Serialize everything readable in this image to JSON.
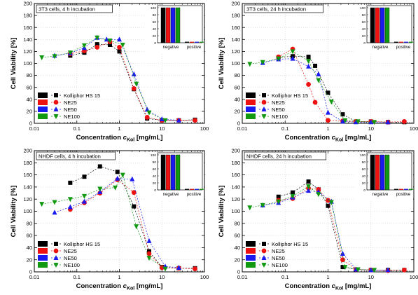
{
  "legend_entries": [
    "Kolliphor HS 15",
    "NE25",
    "NE50",
    "NE100"
  ],
  "colors": {
    "Kolliphor HS 15": "#000000",
    "NE25": "#ee1111",
    "NE50": "#1a1aee",
    "NE100": "#119911"
  },
  "inset": {
    "categories": [
      "negative",
      "positive"
    ],
    "yticks": [
      "0",
      "20",
      "40",
      "60",
      "80",
      "100"
    ]
  },
  "chart_data": [
    {
      "type": "scatter",
      "title": "3T3 cells, 4 h incubation",
      "xlabel_main": "Concentration ",
      "xlabel_italic": "c",
      "xlabel_sub": "Kol",
      "xlabel_unit": " [mg/mL]",
      "ylabel": "Cell Viability [%]",
      "xscale": "log",
      "xlim": [
        0.01,
        100
      ],
      "ylim": [
        0,
        200
      ],
      "xticks": [
        "0.01",
        "0.1",
        "1",
        "10",
        "100"
      ],
      "yticks": [
        "0",
        "20",
        "40",
        "60",
        "80",
        "100",
        "120",
        "140",
        "160",
        "180",
        "200"
      ],
      "series": [
        {
          "name": "Kolliphor HS 15",
          "x": [
            0.07,
            0.15,
            0.3,
            0.6,
            1.0,
            2.2,
            4.5,
            10,
            25,
            60
          ],
          "y": [
            113,
            118,
            132,
            131,
            120,
            57,
            8,
            5,
            5,
            6
          ]
        },
        {
          "name": "NE25",
          "x": [
            0.07,
            0.15,
            0.3,
            0.6,
            1.0,
            2.2,
            4.5,
            10,
            25,
            60
          ],
          "y": [
            116,
            121,
            127,
            136,
            127,
            58,
            10,
            5,
            5,
            5
          ]
        },
        {
          "name": "NE50",
          "x": [
            0.03,
            0.07,
            0.15,
            0.3,
            0.5,
            1.0,
            2.2,
            4.5,
            10,
            25
          ],
          "y": [
            113,
            117,
            126,
            143,
            140,
            140,
            82,
            23,
            7,
            5
          ]
        },
        {
          "name": "NE100",
          "x": [
            0.015,
            0.03,
            0.07,
            0.15,
            0.3,
            0.6,
            1.2,
            2.5,
            5,
            12
          ],
          "y": [
            110,
            112,
            118,
            130,
            143,
            138,
            131,
            66,
            18,
            5
          ]
        }
      ]
    },
    {
      "type": "scatter",
      "title": "3T3 cells, 24 h incubation",
      "xlabel_main": "Concentration ",
      "xlabel_italic": "c",
      "xlabel_sub": "Kol",
      "xlabel_unit": " [mg/mL]",
      "ylabel": "Cell Viability [%]",
      "xscale": "log",
      "xlim": [
        0.01,
        100
      ],
      "ylim": [
        0,
        200
      ],
      "xticks": [
        "0.01",
        "0.1",
        "1",
        "10",
        "100"
      ],
      "yticks": [
        "0",
        "20",
        "40",
        "60",
        "80",
        "100",
        "120",
        "140",
        "160",
        "180",
        "200"
      ],
      "series": [
        {
          "name": "Kolliphor HS 15",
          "x": [
            0.07,
            0.15,
            0.35,
            0.5,
            1.0,
            2.2,
            4.5,
            10,
            25,
            60
          ],
          "y": [
            110,
            112,
            111,
            96,
            51,
            15,
            3,
            3,
            2,
            2
          ]
        },
        {
          "name": "NE25",
          "x": [
            0.07,
            0.15,
            0.35,
            0.5,
            1.0,
            2.2,
            4.5,
            10,
            25,
            60
          ],
          "y": [
            111,
            124,
            65,
            35,
            5,
            4,
            3,
            3,
            2,
            3
          ]
        },
        {
          "name": "NE50",
          "x": [
            0.03,
            0.07,
            0.15,
            0.35,
            0.6,
            1.0,
            2.2,
            4.5,
            10,
            25
          ],
          "y": [
            101,
            107,
            108,
            95,
            82,
            18,
            3,
            2,
            2,
            2
          ]
        },
        {
          "name": "NE100",
          "x": [
            0.015,
            0.03,
            0.07,
            0.15,
            0.35,
            0.6,
            1.2,
            2.5,
            5,
            12
          ],
          "y": [
            99,
            102,
            108,
            120,
            104,
            72,
            36,
            5,
            3,
            2
          ]
        }
      ]
    },
    {
      "type": "scatter",
      "title": "NHDF cells, 4 h incubation",
      "xlabel_main": "Concentration ",
      "xlabel_italic": "c",
      "xlabel_sub": "Kol",
      "xlabel_unit": " [mg/mL]",
      "ylabel": "Cell Viability [%]",
      "xscale": "log",
      "xlim": [
        0.01,
        100
      ],
      "ylim": [
        0,
        200
      ],
      "xticks": [
        "0.01",
        "0.1",
        "1",
        "10",
        "100"
      ],
      "yticks": [
        "0",
        "20",
        "40",
        "60",
        "80",
        "100",
        "120",
        "140",
        "160",
        "180",
        "200"
      ],
      "series": [
        {
          "name": "Kolliphor HS 15",
          "x": [
            0.07,
            0.15,
            0.35,
            0.9,
            2.2,
            5,
            10,
            25,
            60
          ],
          "y": [
            147,
            157,
            174,
            165,
            108,
            34,
            8,
            6,
            6
          ]
        },
        {
          "name": "NE25",
          "x": [
            0.07,
            0.15,
            0.35,
            0.9,
            2.2,
            5,
            10,
            25,
            60
          ],
          "y": [
            103,
            114,
            130,
            152,
            131,
            30,
            7,
            6,
            5
          ]
        },
        {
          "name": "NE50",
          "x": [
            0.03,
            0.07,
            0.15,
            0.35,
            0.9,
            2.0,
            5,
            12,
            25
          ],
          "y": [
            98,
            107,
            116,
            132,
            154,
            153,
            51,
            9,
            7
          ]
        },
        {
          "name": "NE100",
          "x": [
            0.015,
            0.03,
            0.07,
            0.15,
            0.35,
            0.8,
            1.2,
            2.5,
            5,
            12
          ],
          "y": [
            112,
            115,
            120,
            125,
            137,
            139,
            160,
            75,
            23,
            5
          ]
        }
      ]
    },
    {
      "type": "scatter",
      "title": "NHDF cells, 24 h incubation",
      "xlabel_main": "Concentration ",
      "xlabel_italic": "c",
      "xlabel_sub": "Kol",
      "xlabel_unit": " [mg/mL]",
      "ylabel": "Cell Viability [%]",
      "xscale": "log",
      "xlim": [
        0.01,
        100
      ],
      "ylim": [
        0,
        200
      ],
      "xticks": [
        "0.01",
        "0.1",
        "1",
        "10",
        "100"
      ],
      "yticks": [
        "0",
        "20",
        "40",
        "60",
        "80",
        "100",
        "120",
        "140",
        "160",
        "180",
        "200"
      ],
      "series": [
        {
          "name": "Kolliphor HS 15",
          "x": [
            0.07,
            0.15,
            0.35,
            0.6,
            1.0,
            2.2,
            4.5,
            10,
            25,
            60
          ],
          "y": [
            124,
            131,
            149,
            136,
            109,
            8,
            4,
            3,
            3,
            3
          ]
        },
        {
          "name": "NE25",
          "x": [
            0.07,
            0.15,
            0.35,
            0.6,
            1.0,
            2.2,
            4.5,
            10,
            25,
            60
          ],
          "y": [
            118,
            121,
            138,
            136,
            118,
            20,
            4,
            3,
            2,
            3
          ]
        },
        {
          "name": "NE50",
          "x": [
            0.03,
            0.07,
            0.15,
            0.35,
            0.6,
            1.2,
            2.2,
            4.5,
            10,
            25
          ],
          "y": [
            110,
            114,
            123,
            134,
            132,
            116,
            30,
            4,
            3,
            3
          ]
        },
        {
          "name": "NE100",
          "x": [
            0.015,
            0.03,
            0.07,
            0.15,
            0.35,
            0.6,
            1.2,
            2.5,
            5,
            12
          ],
          "y": [
            106,
            110,
            116,
            125,
            141,
            128,
            115,
            8,
            4,
            3
          ]
        }
      ]
    }
  ]
}
